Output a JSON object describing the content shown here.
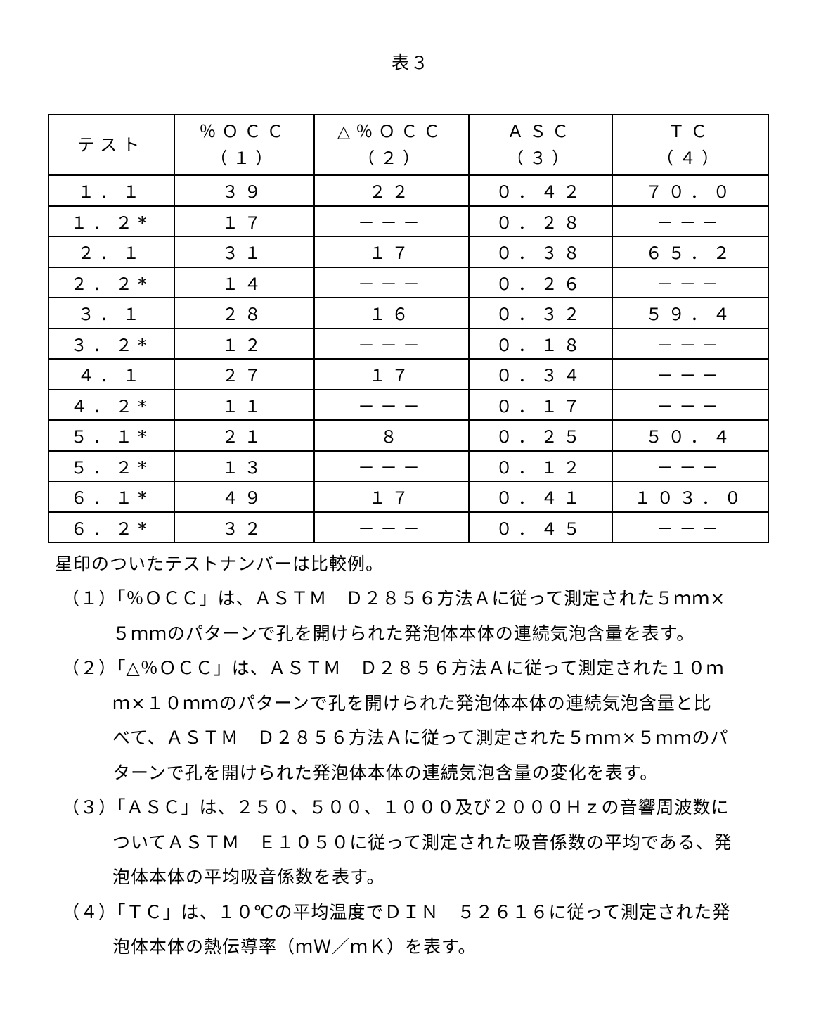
{
  "title": "表３",
  "table": {
    "headers": [
      {
        "line1": "テスト",
        "line2": ""
      },
      {
        "line1": "％ＯＣＣ",
        "line2": "（１）"
      },
      {
        "line1": "△％ＯＣＣ",
        "line2": "（２）"
      },
      {
        "line1": "ＡＳＣ",
        "line2": "（３）"
      },
      {
        "line1": "ＴＣ",
        "line2": "（４）"
      }
    ],
    "rows": [
      [
        "１．１",
        "３９",
        "２２",
        "０．４２",
        "７０．０"
      ],
      [
        "１．２*",
        "１７",
        "－－－",
        "０．２８",
        "－－－"
      ],
      [
        "２．１",
        "３１",
        "１７",
        "０．３８",
        "６５．２"
      ],
      [
        "２．２*",
        "１４",
        "－－－",
        "０．２６",
        "－－－"
      ],
      [
        "３．１",
        "２８",
        "１６",
        "０．３２",
        "５９．４"
      ],
      [
        "３．２*",
        "１２",
        "－－－",
        "０．１８",
        "－－－"
      ],
      [
        "４．１",
        "２７",
        "１７",
        "０．３４",
        "－－－"
      ],
      [
        "４．２*",
        "１１",
        "－－－",
        "０．１７",
        "－－－"
      ],
      [
        "５．１*",
        "２１",
        "８",
        "０．２５",
        "５０．４"
      ],
      [
        "５．２*",
        "１３",
        "－－－",
        "０．１２",
        "－－－"
      ],
      [
        "６．１*",
        "４９",
        "１７",
        "０．４１",
        "１０３．０"
      ],
      [
        "６．２*",
        "３２",
        "－－－",
        "０．４５",
        "－－－"
      ]
    ]
  },
  "notes": {
    "asterisk": "星印のついたテストナンバーは比較例。",
    "lines": [
      "（１）「％ＯＣＣ」は、ＡＳＴＭ　Ｄ２８５６方法Ａに従って測定された５ｍｍ×",
      "５ｍｍのパターンで孔を開けられた発泡体本体の連続気泡含量を表す。",
      "（２）「△％ＯＣＣ」は、ＡＳＴＭ　Ｄ２８５６方法Ａに従って測定された１０ｍ",
      "ｍ×１０ｍｍのパターンで孔を開けられた発泡体本体の連続気泡含量と比",
      "べて、ＡＳＴＭ　Ｄ２８５６方法Ａに従って測定された５ｍｍ×５ｍｍのパ",
      "ターンで孔を開けられた発泡体本体の連続気泡含量の変化を表す。",
      "（３）「ＡＳＣ」は、２５０、５００、１０００及び２０００Ｈｚの音響周波数に",
      "ついてＡＳＴＭ　Ｅ１０５０に従って測定された吸音係数の平均である、発",
      "泡体本体の平均吸音係数を表す。",
      "（４）「ＴＣ」は、１０℃の平均温度でＤＩＮ　５２６１６に従って測定された発",
      "泡体本体の熱伝導率（ｍＷ／ｍＫ）を表す。"
    ]
  }
}
